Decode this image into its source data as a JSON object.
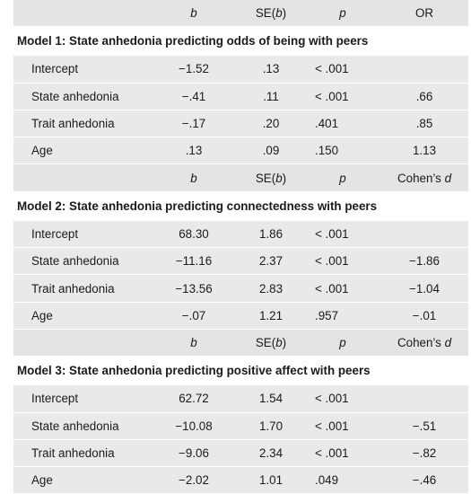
{
  "models": [
    {
      "header": {
        "b": "b",
        "se_pre": "SE(",
        "se_var": "b",
        "se_post": ")",
        "p": "p",
        "effect_pre": "OR",
        "effect_var": ""
      },
      "title": "Model 1: State anhedonia predicting odds of being with peers",
      "rows": [
        {
          "label": "Intercept",
          "b": "−1.52",
          "se": ".13",
          "p": "< .001",
          "effect": ""
        },
        {
          "label": "State anhedonia",
          "b": "−.41",
          "se": ".11",
          "p": "< .001",
          "effect": ".66"
        },
        {
          "label": "Trait anhedonia",
          "b": "−.17",
          "se": ".20",
          "p": ".401",
          "effect": ".85"
        },
        {
          "label": "Age",
          "b": ".13",
          "se": ".09",
          "p": ".150",
          "effect": "1.13"
        }
      ]
    },
    {
      "header": {
        "b": "b",
        "se_pre": "SE(",
        "se_var": "b",
        "se_post": ")",
        "p": "p",
        "effect_pre": "Cohen’s ",
        "effect_var": "d"
      },
      "title": "Model 2: State anhedonia predicting connectedness with peers",
      "rows": [
        {
          "label": "Intercept",
          "b": "68.30",
          "se": "1.86",
          "p": "< .001",
          "effect": ""
        },
        {
          "label": "State anhedonia",
          "b": "−11.16",
          "se": "2.37",
          "p": "< .001",
          "effect": "−1.86"
        },
        {
          "label": "Trait anhedonia",
          "b": "−13.56",
          "se": "2.83",
          "p": "< .001",
          "effect": "−1.04"
        },
        {
          "label": "Age",
          "b": "−.07",
          "se": "1.21",
          "p": ".957",
          "effect": "−.01"
        }
      ]
    },
    {
      "header": {
        "b": "b",
        "se_pre": "SE(",
        "se_var": "b",
        "se_post": ")",
        "p": "p",
        "effect_pre": "Cohen’s ",
        "effect_var": "d"
      },
      "title": "Model 3: State anhedonia predicting positive affect with peers",
      "rows": [
        {
          "label": "Intercept",
          "b": "62.72",
          "se": "1.54",
          "p": "< .001",
          "effect": ""
        },
        {
          "label": "State anhedonia",
          "b": "−10.08",
          "se": "1.70",
          "p": "< .001",
          "effect": "−.51"
        },
        {
          "label": "Trait anhedonia",
          "b": "−9.06",
          "se": "2.34",
          "p": "< .001",
          "effect": "−.82"
        },
        {
          "label": "Age",
          "b": "−2.02",
          "se": "1.01",
          "p": ".049",
          "effect": "−.46"
        }
      ]
    }
  ]
}
